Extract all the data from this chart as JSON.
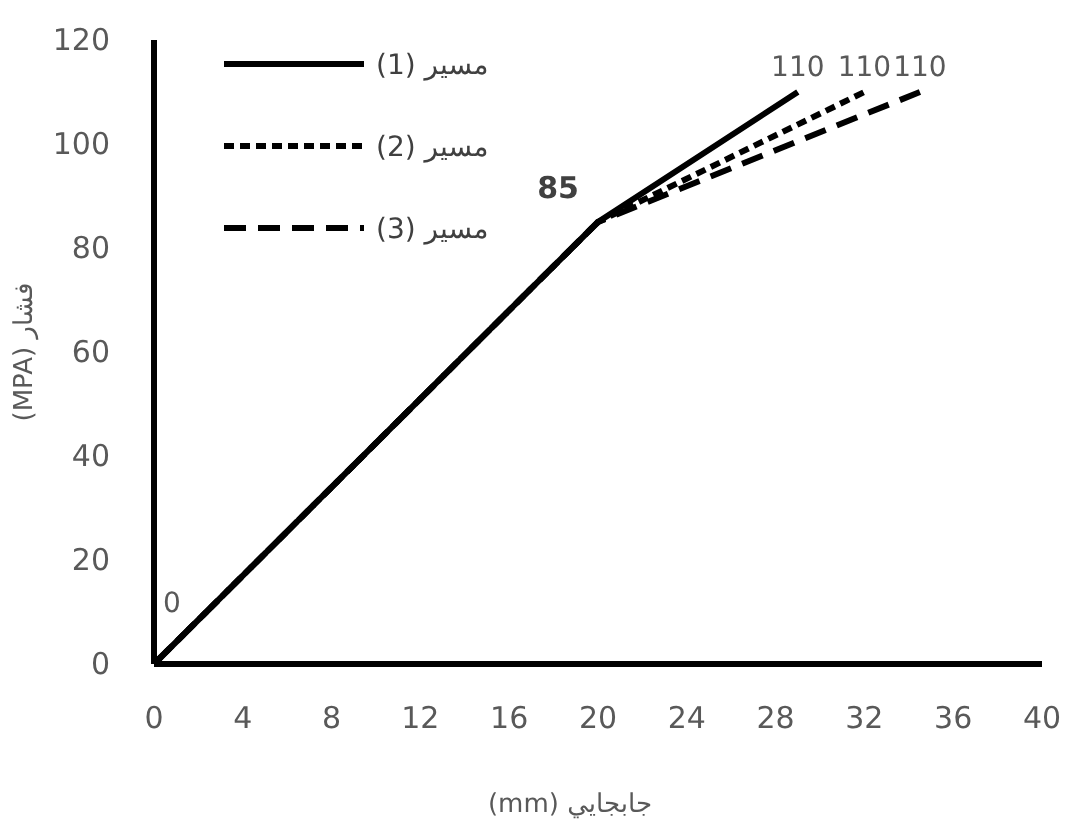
{
  "chart_data": {
    "type": "line",
    "xlabel": "جابجايي (mm)",
    "ylabel": "فشار (MPA)",
    "xlim": [
      0,
      40
    ],
    "xticks": [
      0,
      4,
      8,
      12,
      16,
      20,
      24,
      28,
      32,
      36,
      40
    ],
    "ylim": [
      0,
      120
    ],
    "yticks": [
      0,
      20,
      40,
      60,
      80,
      100,
      120
    ],
    "grid": false,
    "legend": "top left",
    "marker": "none",
    "series": [
      {
        "name": "مسیر (1)",
        "color": "#000000",
        "line_style": "solid",
        "x": [
          0,
          20,
          29
        ],
        "values": [
          0,
          85,
          110
        ],
        "value_labels": [
          "0",
          "85",
          "110"
        ]
      },
      {
        "name": "مسیر (2)",
        "color": "#000000",
        "line_style": "dotted",
        "x": [
          0,
          20,
          32
        ],
        "values": [
          0,
          85,
          110
        ],
        "value_labels": [
          null,
          null,
          "110"
        ]
      },
      {
        "name": "مسیر (3)",
        "color": "#000000",
        "line_style": "dashed",
        "x": [
          0,
          20,
          34.5
        ],
        "values": [
          0,
          85,
          110
        ],
        "value_labels": [
          null,
          null,
          "110"
        ]
      }
    ]
  }
}
